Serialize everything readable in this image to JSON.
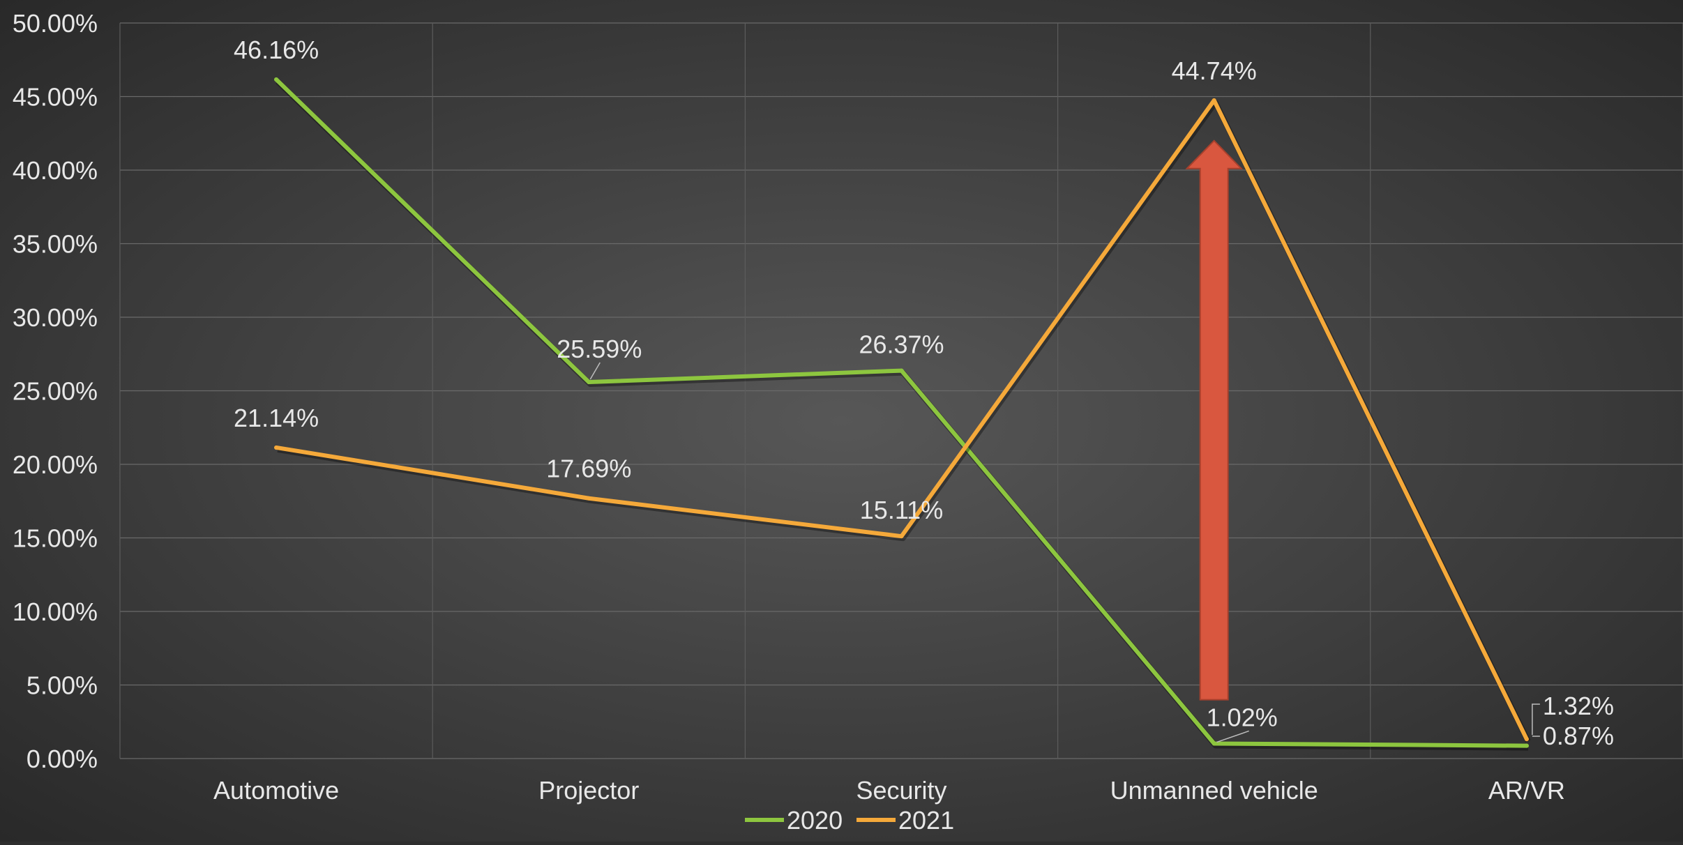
{
  "chart_data": {
    "type": "line",
    "title": "",
    "xlabel": "",
    "ylabel": "",
    "categories": [
      "Automotive",
      "Projector",
      "Security",
      "Unmanned vehicle",
      "AR/VR"
    ],
    "series": [
      {
        "name": "2020",
        "color": "#8dc63f",
        "values": [
          46.16,
          25.59,
          26.37,
          1.02,
          0.87
        ],
        "labels": [
          "46.16%",
          "25.59%",
          "26.37%",
          "1.02%",
          "0.87%"
        ]
      },
      {
        "name": "2021",
        "color": "#f5a93a",
        "values": [
          21.14,
          17.69,
          15.11,
          44.74,
          1.32
        ],
        "labels": [
          "21.14%",
          "17.69%",
          "15.11%",
          "44.74%",
          "1.32%"
        ]
      }
    ],
    "ylim": [
      0,
      50
    ],
    "yticks": [
      "0.00%",
      "5.00%",
      "10.00%",
      "15.00%",
      "20.00%",
      "25.00%",
      "30.00%",
      "35.00%",
      "40.00%",
      "45.00%",
      "50.00%"
    ],
    "grid": true,
    "legend_position": "bottom",
    "annotation": {
      "type": "arrow",
      "color": "#d9573f",
      "category": "Unmanned vehicle",
      "from": 4,
      "to": 42
    }
  }
}
